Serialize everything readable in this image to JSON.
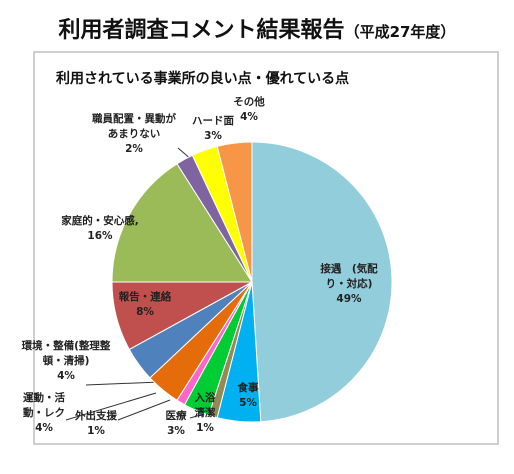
{
  "chart_data": {
    "type": "pie",
    "title": "利用者調査コメント結果報告",
    "title_note": "（平成27年度）",
    "chart_title": "利用されている事業所の良い点・優れている点",
    "categories": [
      "接遇　(気配り・対応)",
      "食事",
      "入浴清潔",
      "医療",
      "外出支援",
      "運動・活動・レク",
      "環境・整備(整理整頓・清掃)",
      "報告・連絡",
      "家庭的・安心感,",
      "職員配置・異動があまりない",
      "ハード面",
      "その他"
    ],
    "values": [
      49,
      5,
      1,
      3,
      1,
      4,
      4,
      8,
      16,
      2,
      3,
      4
    ],
    "value_labels": [
      "49%",
      "5%",
      "1%",
      "3%",
      "1%",
      "4%",
      "4%",
      "8%",
      "16%",
      "2%",
      "3%",
      "4%"
    ],
    "colors": [
      "#92cddc",
      "#00b0f0",
      "#948a54",
      "#00cc33",
      "#ff66cc",
      "#e46c0a",
      "#4f81bd",
      "#c0504d",
      "#9bbb59",
      "#8064a2",
      "#ffff00",
      "#f79646"
    ]
  }
}
